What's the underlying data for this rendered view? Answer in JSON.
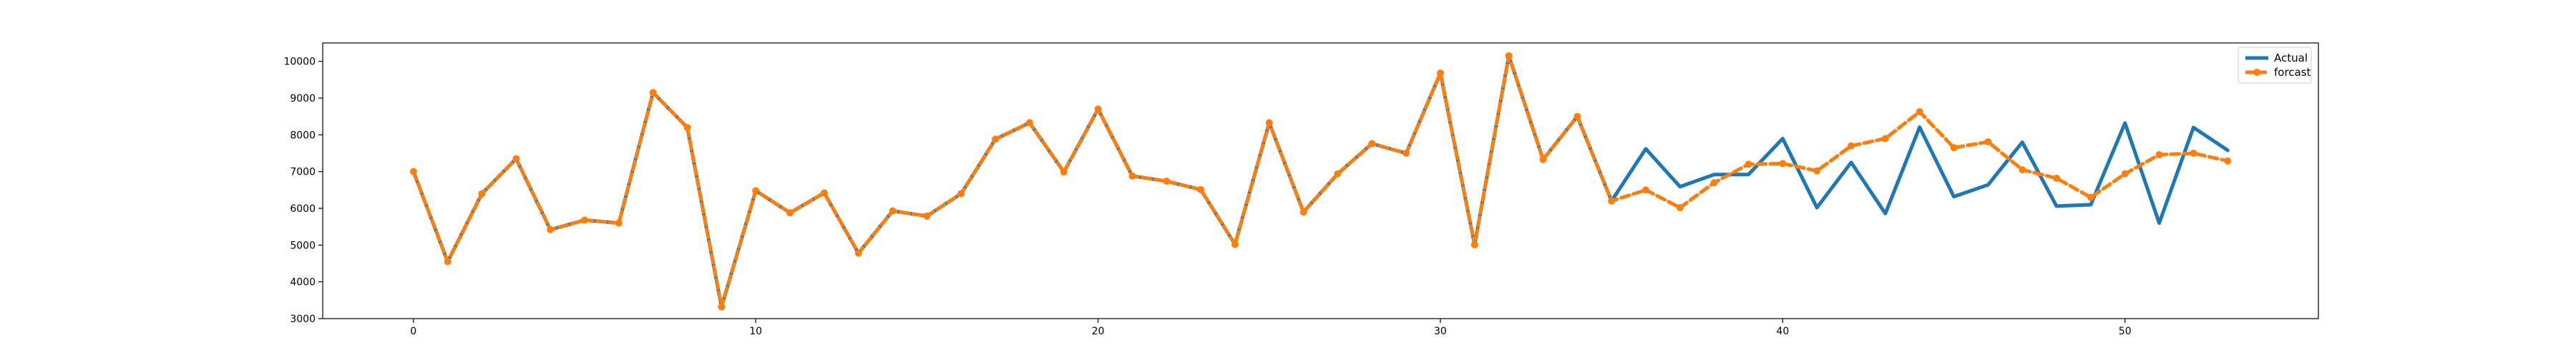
{
  "chart_data": {
    "type": "line",
    "title": "",
    "xlabel": "",
    "ylabel": "",
    "xlim": [
      -2.65,
      55.65
    ],
    "ylim": [
      3000,
      10500
    ],
    "x_ticks": [
      0,
      10,
      20,
      30,
      40,
      50
    ],
    "y_ticks": [
      3000,
      4000,
      5000,
      6000,
      7000,
      8000,
      9000,
      10000
    ],
    "grid": false,
    "legend_position": "top-right",
    "series": [
      {
        "name": "Actual",
        "color": "#1f77b4",
        "style": "solid",
        "marker": "none",
        "x": [
          0,
          1,
          2,
          3,
          4,
          5,
          6,
          7,
          8,
          9,
          10,
          11,
          12,
          13,
          14,
          15,
          16,
          17,
          18,
          19,
          20,
          21,
          22,
          23,
          24,
          25,
          26,
          27,
          28,
          29,
          30,
          31,
          32,
          33,
          34,
          35,
          36,
          37,
          38,
          39,
          40,
          41,
          42,
          43,
          44,
          45,
          46,
          47,
          48,
          49,
          50,
          51,
          52,
          53
        ],
        "values": [
          7000,
          4550,
          6400,
          7350,
          5420,
          5680,
          5600,
          9150,
          8200,
          3320,
          6480,
          5880,
          6420,
          4780,
          5930,
          5790,
          6400,
          7880,
          8330,
          6990,
          8700,
          6880,
          6740,
          6510,
          5020,
          8330,
          5900,
          6940,
          7760,
          7500,
          9680,
          5010,
          10150,
          7330,
          8500,
          6200,
          7620,
          6590,
          6920,
          6920,
          7900,
          6020,
          7250,
          5860,
          8210,
          6320,
          6640,
          7800,
          6060,
          6100,
          8320,
          5600,
          8200,
          7580
        ]
      },
      {
        "name": "forcast",
        "color": "#ff7f0e",
        "style": "dashed",
        "marker": "circle",
        "x": [
          0,
          1,
          2,
          3,
          4,
          5,
          6,
          7,
          8,
          9,
          10,
          11,
          12,
          13,
          14,
          15,
          16,
          17,
          18,
          19,
          20,
          21,
          22,
          23,
          24,
          25,
          26,
          27,
          28,
          29,
          30,
          31,
          32,
          33,
          34,
          35,
          36,
          37,
          38,
          39,
          40,
          41,
          42,
          43,
          44,
          45,
          46,
          47,
          48,
          49,
          50,
          51,
          52,
          53
        ],
        "values": [
          7000,
          4550,
          6400,
          7350,
          5420,
          5680,
          5600,
          9150,
          8200,
          3320,
          6480,
          5880,
          6420,
          4780,
          5930,
          5790,
          6400,
          7880,
          8330,
          6990,
          8700,
          6880,
          6740,
          6510,
          5020,
          8330,
          5900,
          6940,
          7760,
          7500,
          9680,
          5010,
          10150,
          7330,
          8500,
          6200,
          6500,
          6020,
          6700,
          7200,
          7220,
          7020,
          7700,
          7900,
          8630,
          7650,
          7810,
          7050,
          6820,
          6300,
          6940,
          7460,
          7500,
          7290
        ]
      }
    ]
  }
}
